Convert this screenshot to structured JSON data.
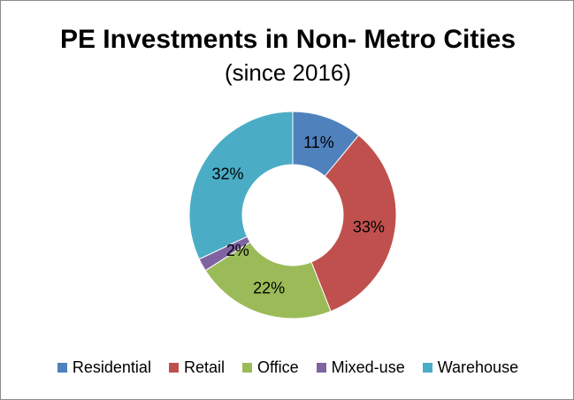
{
  "chart_data": {
    "type": "pie",
    "variant": "donut",
    "title": "PE Investments in Non- Metro Cities",
    "subtitle": "(since 2016)",
    "legend_position": "bottom",
    "slices": [
      {
        "name": "Residential",
        "value": 11,
        "label": "11%",
        "color": "#4F81BD"
      },
      {
        "name": "Retail",
        "value": 33,
        "label": "33%",
        "color": "#C0504D"
      },
      {
        "name": "Office",
        "value": 22,
        "label": "22%",
        "color": "#9BBB59"
      },
      {
        "name": "Mixed-use",
        "value": 2,
        "label": "2%",
        "color": "#8064A2"
      },
      {
        "name": "Warehouse",
        "value": 32,
        "label": "32%",
        "color": "#4BACC6"
      }
    ]
  }
}
